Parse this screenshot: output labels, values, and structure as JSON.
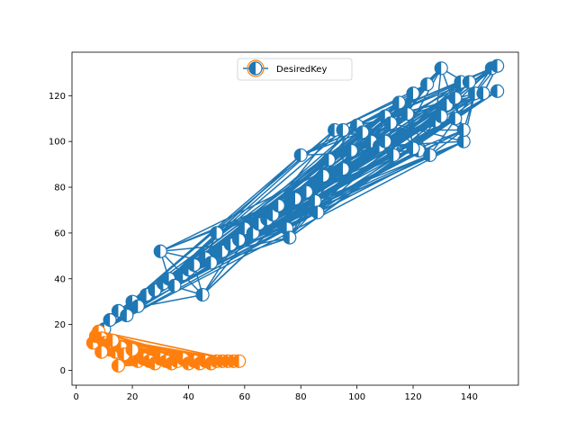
{
  "chart_data": {
    "type": "line",
    "title": "",
    "xlabel": "",
    "ylabel": "",
    "xlim": [
      -1.5,
      157.5
    ],
    "ylim": [
      -6.5,
      139
    ],
    "x_ticks": [
      0,
      20,
      40,
      60,
      80,
      100,
      120,
      140
    ],
    "y_ticks": [
      0,
      20,
      40,
      60,
      80,
      100,
      120
    ],
    "x_tick_labels": [
      "0",
      "20",
      "40",
      "60",
      "80",
      "100",
      "120",
      "140"
    ],
    "y_tick_labels": [
      "0",
      "20",
      "40",
      "60",
      "80",
      "100",
      "120"
    ],
    "grid": false,
    "legend_position": "top-center",
    "marker": "half-filled circle",
    "series": [
      {
        "name": "DesiredKey",
        "color": "#1f77b4",
        "points": [
          [
            10,
            18
          ],
          [
            12,
            22
          ],
          [
            15,
            26
          ],
          [
            18,
            24
          ],
          [
            20,
            30
          ],
          [
            22,
            28
          ],
          [
            25,
            33
          ],
          [
            28,
            35
          ],
          [
            30,
            52
          ],
          [
            31,
            38
          ],
          [
            33,
            40
          ],
          [
            35,
            37
          ],
          [
            38,
            42
          ],
          [
            40,
            44
          ],
          [
            42,
            46
          ],
          [
            45,
            33
          ],
          [
            46,
            49
          ],
          [
            48,
            47
          ],
          [
            50,
            60
          ],
          [
            52,
            52
          ],
          [
            55,
            55
          ],
          [
            58,
            57
          ],
          [
            60,
            62
          ],
          [
            63,
            60
          ],
          [
            65,
            64
          ],
          [
            68,
            66
          ],
          [
            70,
            68
          ],
          [
            72,
            72
          ],
          [
            75,
            62
          ],
          [
            78,
            75
          ],
          [
            80,
            94
          ],
          [
            82,
            78
          ],
          [
            85,
            74
          ],
          [
            88,
            85
          ],
          [
            90,
            92
          ],
          [
            92,
            105
          ],
          [
            95,
            105
          ],
          [
            98,
            96
          ],
          [
            100,
            107
          ],
          [
            102,
            104
          ],
          [
            105,
            100
          ],
          [
            108,
            98
          ],
          [
            110,
            111
          ],
          [
            112,
            108
          ],
          [
            115,
            117
          ],
          [
            118,
            112
          ],
          [
            120,
            121
          ],
          [
            122,
            96
          ],
          [
            125,
            125
          ],
          [
            128,
            109
          ],
          [
            130,
            132
          ],
          [
            132,
            116
          ],
          [
            135,
            119
          ],
          [
            137,
            126
          ],
          [
            138,
            100
          ],
          [
            140,
            126
          ],
          [
            142,
            121
          ],
          [
            145,
            121
          ],
          [
            148,
            132
          ],
          [
            150,
            133
          ],
          [
            150,
            122
          ],
          [
            126,
            94
          ],
          [
            135,
            110
          ],
          [
            138,
            105
          ],
          [
            110,
            100
          ],
          [
            95,
            88
          ],
          [
            76,
            58
          ],
          [
            86,
            69
          ],
          [
            120,
            97
          ],
          [
            113,
            94
          ],
          [
            130,
            111
          ]
        ]
      },
      {
        "name": "",
        "color": "#ff7f0e",
        "points": [
          [
            6,
            12
          ],
          [
            7,
            15
          ],
          [
            8,
            17
          ],
          [
            9,
            14
          ],
          [
            10,
            12
          ],
          [
            11,
            11
          ],
          [
            12,
            9
          ],
          [
            14,
            8
          ],
          [
            15,
            2
          ],
          [
            16,
            10
          ],
          [
            18,
            6
          ],
          [
            20,
            5
          ],
          [
            22,
            4
          ],
          [
            24,
            5
          ],
          [
            26,
            4
          ],
          [
            28,
            3
          ],
          [
            30,
            5
          ],
          [
            32,
            4
          ],
          [
            34,
            3
          ],
          [
            36,
            4
          ],
          [
            38,
            5
          ],
          [
            40,
            3
          ],
          [
            42,
            4
          ],
          [
            44,
            3
          ],
          [
            46,
            4
          ],
          [
            48,
            3
          ],
          [
            50,
            4
          ],
          [
            52,
            4
          ],
          [
            54,
            4
          ],
          [
            56,
            4
          ],
          [
            58,
            4
          ],
          [
            13,
            13
          ],
          [
            17,
            7
          ],
          [
            20,
            9
          ],
          [
            9,
            8
          ]
        ]
      }
    ]
  }
}
